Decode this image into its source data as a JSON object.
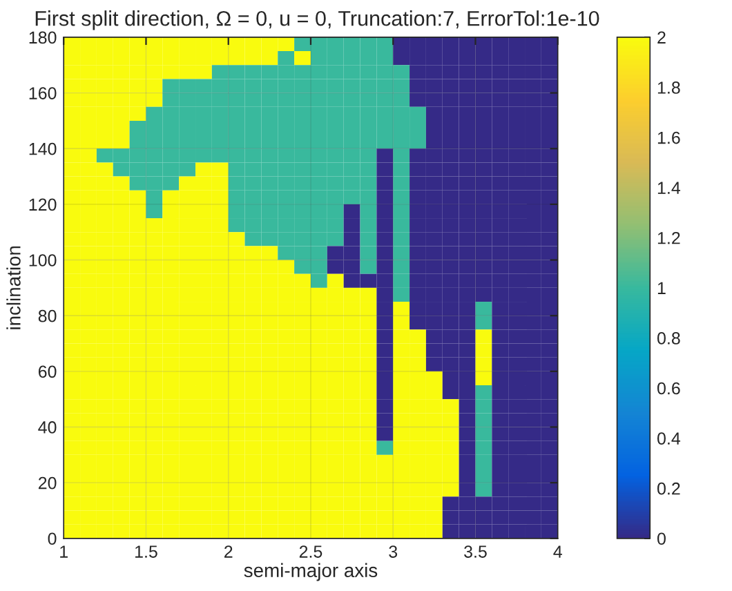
{
  "chart_data": {
    "type": "heatmap",
    "title": "First split direction, Ω = 0, u = 0, Truncation:7, ErrorTol:1e-10",
    "xlabel": "semi-major axis",
    "ylabel": "inclination",
    "xlim": [
      1,
      4
    ],
    "xticks": [
      1,
      1.5,
      2,
      2.5,
      3,
      3.5,
      4
    ],
    "ylim": [
      0,
      180
    ],
    "yticks": [
      0,
      20,
      40,
      60,
      80,
      100,
      120,
      140,
      160,
      180
    ],
    "clim": [
      0,
      2
    ],
    "cticks": [
      0,
      0.2,
      0.4,
      0.6,
      0.8,
      1,
      1.2,
      1.4,
      1.6,
      1.8,
      2
    ],
    "grid": true,
    "cells": [
      [
        2,
        2,
        2,
        2,
        2,
        2,
        2,
        2,
        2,
        2,
        2,
        2,
        2,
        2,
        1,
        1,
        1,
        1,
        1,
        1,
        0,
        0,
        0,
        0,
        0,
        0,
        0,
        0,
        0,
        0
      ],
      [
        2,
        2,
        2,
        2,
        2,
        2,
        2,
        2,
        2,
        2,
        2,
        2,
        2,
        1,
        2,
        1,
        1,
        1,
        1,
        1,
        0,
        0,
        0,
        0,
        0,
        0,
        0,
        0,
        0,
        0
      ],
      [
        2,
        2,
        2,
        2,
        2,
        2,
        2,
        2,
        2,
        1,
        1,
        1,
        1,
        1,
        1,
        1,
        1,
        1,
        1,
        1,
        1,
        0,
        0,
        0,
        0,
        0,
        0,
        0,
        0,
        0
      ],
      [
        2,
        2,
        2,
        2,
        2,
        2,
        1,
        1,
        1,
        1,
        1,
        1,
        1,
        1,
        1,
        1,
        1,
        1,
        1,
        1,
        1,
        0,
        0,
        0,
        0,
        0,
        0,
        0,
        0,
        0
      ],
      [
        2,
        2,
        2,
        2,
        2,
        2,
        1,
        1,
        1,
        1,
        1,
        1,
        1,
        1,
        1,
        1,
        1,
        1,
        1,
        1,
        1,
        0,
        0,
        0,
        0,
        0,
        0,
        0,
        0,
        0
      ],
      [
        2,
        2,
        2,
        2,
        2,
        1,
        1,
        1,
        1,
        1,
        1,
        1,
        1,
        1,
        1,
        1,
        1,
        1,
        1,
        1,
        1,
        1,
        0,
        0,
        0,
        0,
        0,
        0,
        0,
        0
      ],
      [
        2,
        2,
        2,
        2,
        1,
        1,
        1,
        1,
        1,
        1,
        1,
        1,
        1,
        1,
        1,
        1,
        1,
        1,
        1,
        1,
        1,
        1,
        0,
        0,
        0,
        0,
        0,
        0,
        0,
        0
      ],
      [
        2,
        2,
        2,
        2,
        1,
        1,
        1,
        1,
        1,
        1,
        1,
        1,
        1,
        1,
        1,
        1,
        1,
        1,
        1,
        1,
        1,
        1,
        0,
        0,
        0,
        0,
        0,
        0,
        0,
        0
      ],
      [
        2,
        2,
        1,
        1,
        1,
        1,
        1,
        1,
        1,
        1,
        1,
        1,
        1,
        1,
        1,
        1,
        1,
        1,
        1,
        0,
        1,
        0,
        0,
        0,
        0,
        0,
        0,
        0,
        0,
        0
      ],
      [
        2,
        2,
        2,
        1,
        1,
        1,
        1,
        1,
        2,
        2,
        1,
        1,
        1,
        1,
        1,
        1,
        1,
        1,
        1,
        0,
        1,
        0,
        0,
        0,
        0,
        0,
        0,
        0,
        0,
        0
      ],
      [
        2,
        2,
        2,
        2,
        1,
        1,
        1,
        2,
        2,
        2,
        1,
        1,
        1,
        1,
        1,
        1,
        1,
        1,
        1,
        0,
        1,
        0,
        0,
        0,
        0,
        0,
        0,
        0,
        0,
        0
      ],
      [
        2,
        2,
        2,
        2,
        2,
        1,
        2,
        2,
        2,
        2,
        1,
        1,
        1,
        1,
        1,
        1,
        1,
        1,
        1,
        0,
        1,
        0,
        0,
        0,
        0,
        0,
        0,
        0,
        0,
        0
      ],
      [
        2,
        2,
        2,
        2,
        2,
        1,
        2,
        2,
        2,
        2,
        1,
        1,
        1,
        1,
        1,
        1,
        1,
        0,
        1,
        0,
        1,
        0,
        0,
        0,
        0,
        0,
        0,
        0,
        0,
        0
      ],
      [
        2,
        2,
        2,
        2,
        2,
        2,
        2,
        2,
        2,
        2,
        1,
        1,
        1,
        1,
        1,
        1,
        1,
        0,
        1,
        0,
        1,
        0,
        0,
        0,
        0,
        0,
        0,
        0,
        0,
        0
      ],
      [
        2,
        2,
        2,
        2,
        2,
        2,
        2,
        2,
        2,
        2,
        2,
        1,
        1,
        1,
        1,
        1,
        1,
        0,
        1,
        0,
        1,
        0,
        0,
        0,
        0,
        0,
        0,
        0,
        0,
        0
      ],
      [
        2,
        2,
        2,
        2,
        2,
        2,
        2,
        2,
        2,
        2,
        2,
        2,
        2,
        1,
        1,
        1,
        0,
        0,
        1,
        0,
        1,
        0,
        0,
        0,
        0,
        0,
        0,
        0,
        0,
        0
      ],
      [
        2,
        2,
        2,
        2,
        2,
        2,
        2,
        2,
        2,
        2,
        2,
        2,
        2,
        2,
        1,
        1,
        0,
        0,
        1,
        0,
        1,
        0,
        0,
        0,
        0,
        0,
        0,
        0,
        0,
        0
      ],
      [
        2,
        2,
        2,
        2,
        2,
        2,
        2,
        2,
        2,
        2,
        2,
        2,
        2,
        2,
        2,
        1,
        2,
        0,
        0,
        0,
        1,
        0,
        0,
        0,
        0,
        0,
        0,
        0,
        0,
        0
      ],
      [
        2,
        2,
        2,
        2,
        2,
        2,
        2,
        2,
        2,
        2,
        2,
        2,
        2,
        2,
        2,
        2,
        2,
        2,
        2,
        0,
        1,
        0,
        0,
        0,
        0,
        0,
        0,
        0,
        0,
        0
      ],
      [
        2,
        2,
        2,
        2,
        2,
        2,
        2,
        2,
        2,
        2,
        2,
        2,
        2,
        2,
        2,
        2,
        2,
        2,
        2,
        0,
        2,
        0,
        0,
        0,
        0,
        1,
        0,
        0,
        0,
        0
      ],
      [
        2,
        2,
        2,
        2,
        2,
        2,
        2,
        2,
        2,
        2,
        2,
        2,
        2,
        2,
        2,
        2,
        2,
        2,
        2,
        0,
        2,
        0,
        0,
        0,
        0,
        1,
        0,
        0,
        0,
        0
      ],
      [
        2,
        2,
        2,
        2,
        2,
        2,
        2,
        2,
        2,
        2,
        2,
        2,
        2,
        2,
        2,
        2,
        2,
        2,
        2,
        0,
        2,
        2,
        0,
        0,
        0,
        2,
        0,
        0,
        0,
        0
      ],
      [
        2,
        2,
        2,
        2,
        2,
        2,
        2,
        2,
        2,
        2,
        2,
        2,
        2,
        2,
        2,
        2,
        2,
        2,
        2,
        0,
        2,
        2,
        0,
        0,
        0,
        2,
        0,
        0,
        0,
        0
      ],
      [
        2,
        2,
        2,
        2,
        2,
        2,
        2,
        2,
        2,
        2,
        2,
        2,
        2,
        2,
        2,
        2,
        2,
        2,
        2,
        0,
        2,
        2,
        0,
        0,
        0,
        2,
        0,
        0,
        0,
        0
      ],
      [
        2,
        2,
        2,
        2,
        2,
        2,
        2,
        2,
        2,
        2,
        2,
        2,
        2,
        2,
        2,
        2,
        2,
        2,
        2,
        0,
        2,
        2,
        2,
        0,
        0,
        2,
        0,
        0,
        0,
        0
      ],
      [
        2,
        2,
        2,
        2,
        2,
        2,
        2,
        2,
        2,
        2,
        2,
        2,
        2,
        2,
        2,
        2,
        2,
        2,
        2,
        0,
        2,
        2,
        2,
        0,
        0,
        1,
        0,
        0,
        0,
        0
      ],
      [
        2,
        2,
        2,
        2,
        2,
        2,
        2,
        2,
        2,
        2,
        2,
        2,
        2,
        2,
        2,
        2,
        2,
        2,
        2,
        0,
        2,
        2,
        2,
        2,
        0,
        1,
        0,
        0,
        0,
        0
      ],
      [
        2,
        2,
        2,
        2,
        2,
        2,
        2,
        2,
        2,
        2,
        2,
        2,
        2,
        2,
        2,
        2,
        2,
        2,
        2,
        0,
        2,
        2,
        2,
        2,
        0,
        1,
        0,
        0,
        0,
        0
      ],
      [
        2,
        2,
        2,
        2,
        2,
        2,
        2,
        2,
        2,
        2,
        2,
        2,
        2,
        2,
        2,
        2,
        2,
        2,
        2,
        0,
        2,
        2,
        2,
        2,
        0,
        1,
        0,
        0,
        0,
        0
      ],
      [
        2,
        2,
        2,
        2,
        2,
        2,
        2,
        2,
        2,
        2,
        2,
        2,
        2,
        2,
        2,
        2,
        2,
        2,
        2,
        1,
        2,
        2,
        2,
        2,
        0,
        1,
        0,
        0,
        0,
        0
      ],
      [
        2,
        2,
        2,
        2,
        2,
        2,
        2,
        2,
        2,
        2,
        2,
        2,
        2,
        2,
        2,
        2,
        2,
        2,
        2,
        2,
        2,
        2,
        2,
        2,
        0,
        1,
        0,
        0,
        0,
        0
      ],
      [
        2,
        2,
        2,
        2,
        2,
        2,
        2,
        2,
        2,
        2,
        2,
        2,
        2,
        2,
        2,
        2,
        2,
        2,
        2,
        2,
        2,
        2,
        2,
        2,
        0,
        1,
        0,
        0,
        0,
        0
      ],
      [
        2,
        2,
        2,
        2,
        2,
        2,
        2,
        2,
        2,
        2,
        2,
        2,
        2,
        2,
        2,
        2,
        2,
        2,
        2,
        2,
        2,
        2,
        2,
        2,
        0,
        1,
        0,
        0,
        0,
        0
      ],
      [
        2,
        2,
        2,
        2,
        2,
        2,
        2,
        2,
        2,
        2,
        2,
        2,
        2,
        2,
        2,
        2,
        2,
        2,
        2,
        2,
        2,
        2,
        2,
        0,
        0,
        0,
        0,
        0,
        0,
        0
      ],
      [
        2,
        2,
        2,
        2,
        2,
        2,
        2,
        2,
        2,
        2,
        2,
        2,
        2,
        2,
        2,
        2,
        2,
        2,
        2,
        2,
        2,
        2,
        2,
        0,
        0,
        0,
        0,
        0,
        0,
        0
      ],
      [
        2,
        2,
        2,
        2,
        2,
        2,
        2,
        2,
        2,
        2,
        2,
        2,
        2,
        2,
        2,
        2,
        2,
        2,
        2,
        2,
        2,
        2,
        2,
        0,
        0,
        0,
        0,
        0,
        0,
        0
      ]
    ]
  }
}
